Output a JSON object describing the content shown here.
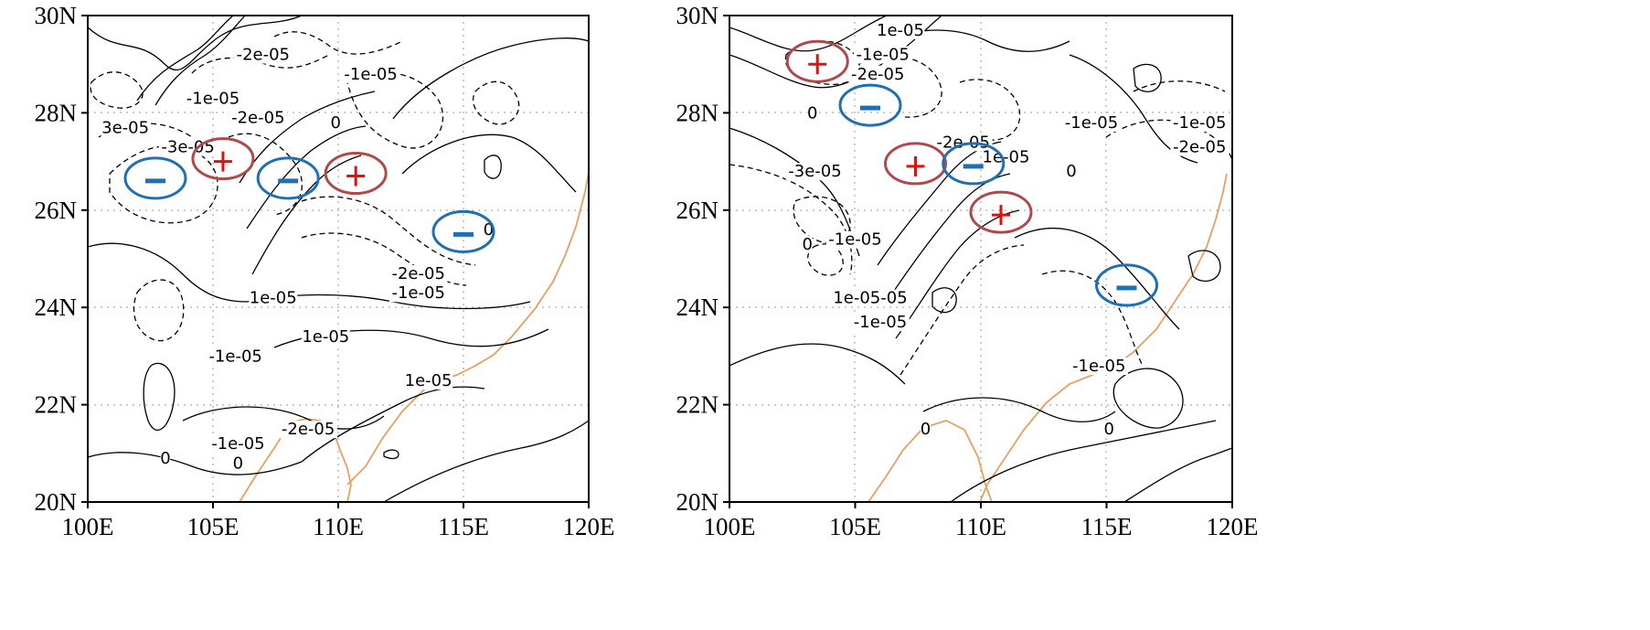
{
  "panels": [
    {
      "x_ticks": [
        "100E",
        "105E",
        "110E",
        "115E",
        "120E"
      ],
      "y_ticks": [
        "20N",
        "22N",
        "24N",
        "26N",
        "28N",
        "30N"
      ],
      "contour_labels": [
        {
          "text": "-2e-05",
          "lon": 107.0,
          "lat": 29.2
        },
        {
          "text": "-1e-05",
          "lon": 111.3,
          "lat": 28.8
        },
        {
          "text": "-1e-05",
          "lon": 105.0,
          "lat": 28.3
        },
        {
          "text": "-2e-05",
          "lon": 106.8,
          "lat": 27.9
        },
        {
          "text": "3e-05",
          "lon": 101.5,
          "lat": 27.7
        },
        {
          "text": "0",
          "lon": 109.9,
          "lat": 27.8
        },
        {
          "text": "-3e-05",
          "lon": 104.0,
          "lat": 27.3
        },
        {
          "text": "0",
          "lon": 116.0,
          "lat": 25.6
        },
        {
          "text": "-2e-05",
          "lon": 113.2,
          "lat": 24.7
        },
        {
          "text": "-1e-05",
          "lon": 113.2,
          "lat": 24.3
        },
        {
          "text": "1e-05",
          "lon": 107.4,
          "lat": 24.2
        },
        {
          "text": "1e-05",
          "lon": 109.5,
          "lat": 23.4
        },
        {
          "text": "-1e-05",
          "lon": 105.9,
          "lat": 23.0
        },
        {
          "text": "1e-05",
          "lon": 113.6,
          "lat": 22.5
        },
        {
          "text": "-2e-05",
          "lon": 108.8,
          "lat": 21.5
        },
        {
          "text": "-1e-05",
          "lon": 106.0,
          "lat": 21.2
        },
        {
          "text": "0",
          "lon": 103.1,
          "lat": 20.9
        },
        {
          "text": "0",
          "lon": 106.0,
          "lat": 20.8
        }
      ],
      "markers": [
        {
          "sign": "minus",
          "lon": 102.7,
          "lat": 26.6,
          "circle_color": "#1f6fb5"
        },
        {
          "sign": "plus",
          "lon": 105.4,
          "lat": 27.0,
          "circle_color": "#b04a4a"
        },
        {
          "sign": "minus",
          "lon": 108.0,
          "lat": 26.6,
          "circle_color": "#1f6fb5"
        },
        {
          "sign": "plus",
          "lon": 110.7,
          "lat": 26.7,
          "circle_color": "#b04a4a"
        },
        {
          "sign": "minus",
          "lon": 115.0,
          "lat": 25.5,
          "circle_color": "#1f6fb5"
        }
      ]
    },
    {
      "x_ticks": [
        "100E",
        "105E",
        "110E",
        "115E",
        "120E"
      ],
      "y_ticks": [
        "20N",
        "22N",
        "24N",
        "26N",
        "28N",
        "30N"
      ],
      "contour_labels": [
        {
          "text": "1e-05",
          "lon": 106.8,
          "lat": 29.7
        },
        {
          "text": "-1e-05",
          "lon": 106.1,
          "lat": 29.2
        },
        {
          "text": "-2e-05",
          "lon": 105.9,
          "lat": 28.8
        },
        {
          "text": "0",
          "lon": 103.3,
          "lat": 28.0
        },
        {
          "text": "-1e-05",
          "lon": 114.4,
          "lat": 27.8
        },
        {
          "text": "-1e-05",
          "lon": 118.7,
          "lat": 27.8
        },
        {
          "text": "-2e-05",
          "lon": 109.3,
          "lat": 27.4
        },
        {
          "text": "-2e-05",
          "lon": 118.7,
          "lat": 27.3
        },
        {
          "text": "1e-05",
          "lon": 111.0,
          "lat": 27.1
        },
        {
          "text": "-3e-05",
          "lon": 103.4,
          "lat": 26.8
        },
        {
          "text": "0",
          "lon": 113.6,
          "lat": 26.8
        },
        {
          "text": "0",
          "lon": 103.1,
          "lat": 25.3
        },
        {
          "text": "-1e-05",
          "lon": 105.0,
          "lat": 25.4
        },
        {
          "text": "1e-05-05",
          "lon": 105.6,
          "lat": 24.2
        },
        {
          "text": "-1e-05",
          "lon": 106.0,
          "lat": 23.7
        },
        {
          "text": "-1e-05",
          "lon": 114.7,
          "lat": 22.8
        },
        {
          "text": "0",
          "lon": 107.8,
          "lat": 21.5
        },
        {
          "text": "0",
          "lon": 115.1,
          "lat": 21.5
        }
      ],
      "markers": [
        {
          "sign": "plus",
          "lon": 103.5,
          "lat": 29.0,
          "circle_color": "#b04a4a"
        },
        {
          "sign": "minus",
          "lon": 105.6,
          "lat": 28.1,
          "circle_color": "#1f6fb5"
        },
        {
          "sign": "plus",
          "lon": 107.4,
          "lat": 26.9,
          "circle_color": "#b04a4a"
        },
        {
          "sign": "minus",
          "lon": 109.7,
          "lat": 26.9,
          "circle_color": "#1f6fb5"
        },
        {
          "sign": "plus",
          "lon": 110.8,
          "lat": 25.9,
          "circle_color": "#b04a4a"
        },
        {
          "sign": "minus",
          "lon": 115.8,
          "lat": 24.4,
          "circle_color": "#1f6fb5"
        }
      ]
    }
  ],
  "colors": {
    "contour": "#000000",
    "coastline": "#e8a060",
    "grid": "#9a9a9a",
    "plus_sign": "#e01010",
    "minus_sign": "#1f6fb5"
  }
}
